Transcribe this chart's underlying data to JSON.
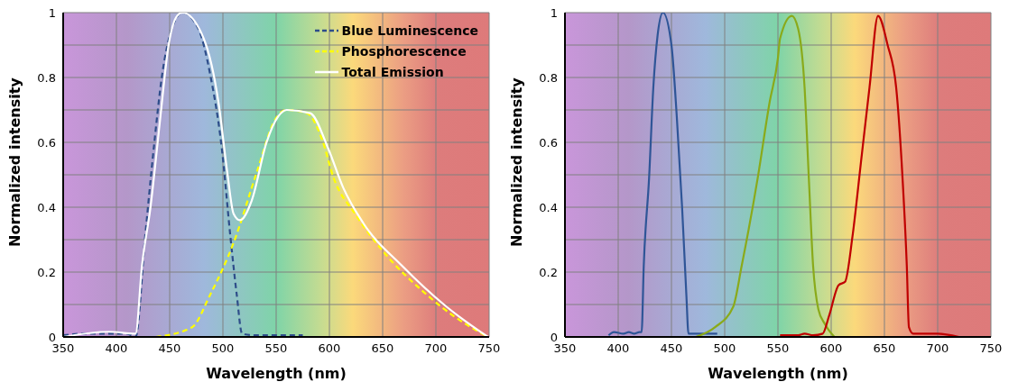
{
  "chart_data": [
    {
      "type": "line",
      "xlabel": "Wavelength (nm)",
      "ylabel": "Normalized intensity",
      "xlim": [
        350,
        750
      ],
      "xticks": [
        350,
        400,
        450,
        500,
        550,
        600,
        650,
        700,
        750
      ],
      "ylim": [
        0,
        1
      ],
      "yticks": [
        0,
        {
          "value": 0.1,
          "label": null
        },
        0.2,
        {
          "value": 0.3,
          "label": null
        },
        0.4,
        {
          "value": 0.5,
          "label": null
        },
        0.6,
        {
          "value": 0.7,
          "label": null
        },
        0.8,
        {
          "value": 0.9,
          "label": null
        },
        1
      ],
      "grid": true,
      "legend": "top right",
      "marker": "none",
      "series": [
        {
          "name": "Blue Luminescence",
          "color": "#2e4d8a",
          "line_style": "dashed",
          "x": [
            350,
            370,
            390,
            410,
            418,
            427,
            435,
            443,
            452,
            462,
            477,
            488,
            499,
            507,
            513,
            518,
            530,
            550,
            575
          ],
          "values": [
            0.005,
            0.01,
            0.01,
            0.01,
            0.0,
            0.31,
            0.58,
            0.81,
            0.95,
            1.0,
            0.95,
            0.81,
            0.58,
            0.31,
            0.13,
            0.01,
            0.005,
            0.005,
            0.005
          ]
        },
        {
          "name": "Phosphorescence",
          "color": "#ffff00",
          "line_style": "dashed",
          "x": [
            437,
            471,
            488,
            510,
            532,
            549,
            560,
            579,
            593,
            604,
            624,
            654,
            688,
            716,
            749
          ],
          "values": [
            0.0,
            0.03,
            0.13,
            0.29,
            0.51,
            0.67,
            0.7,
            0.69,
            0.61,
            0.49,
            0.38,
            0.25,
            0.14,
            0.066,
            0.0
          ]
        },
        {
          "name": "Total Emission",
          "color": "#ffffff",
          "line_style": "solid",
          "x": [
            350,
            393,
            418,
            424,
            432,
            441,
            449,
            457,
            462,
            482,
            496,
            504,
            510,
            516,
            527,
            541,
            552,
            560,
            582,
            599,
            613,
            632,
            668,
            710,
            749
          ],
          "values": [
            0.0,
            0.016,
            0.01,
            0.22,
            0.4,
            0.67,
            0.9,
            0.99,
            1.0,
            0.92,
            0.72,
            0.51,
            0.38,
            0.36,
            0.42,
            0.6,
            0.68,
            0.7,
            0.69,
            0.58,
            0.46,
            0.35,
            0.22,
            0.093,
            0.0
          ]
        }
      ]
    },
    {
      "type": "line",
      "xlabel": "Wavelength (nm)",
      "ylabel": "Normalized intensity",
      "xlim": [
        350,
        750
      ],
      "xticks": [
        350,
        400,
        450,
        500,
        550,
        600,
        650,
        700,
        750
      ],
      "ylim": [
        0,
        1
      ],
      "yticks": [
        0,
        {
          "value": 0.1,
          "label": null
        },
        0.2,
        {
          "value": 0.3,
          "label": null
        },
        0.4,
        {
          "value": 0.5,
          "label": null
        },
        0.6,
        {
          "value": 0.7,
          "label": null
        },
        0.8,
        {
          "value": 0.9,
          "label": null
        },
        1
      ],
      "grid": true,
      "marker": "none",
      "series": [
        {
          "color": "#2f5597",
          "line_style": "solid",
          "x": [
            391,
            396,
            405,
            410,
            415,
            420,
            422,
            424,
            429,
            433,
            437,
            442,
            450,
            455,
            460,
            464,
            466,
            475,
            485,
            493
          ],
          "values": [
            0.005,
            0.015,
            0.01,
            0.015,
            0.01,
            0.015,
            0.015,
            0.22,
            0.49,
            0.77,
            0.93,
            1.0,
            0.9,
            0.68,
            0.4,
            0.13,
            0.01,
            0.01,
            0.01,
            0.01
          ]
        },
        {
          "color": "#8aaa1a",
          "line_style": "solid",
          "x": [
            473,
            491,
            508,
            516,
            531,
            542,
            550,
            552,
            563,
            569,
            575,
            579,
            583,
            588,
            594,
            603
          ],
          "values": [
            0.0,
            0.03,
            0.093,
            0.22,
            0.49,
            0.72,
            0.86,
            0.92,
            0.99,
            0.95,
            0.77,
            0.49,
            0.22,
            0.085,
            0.04,
            0.0
          ]
        },
        {
          "color": "#c00000",
          "line_style": "solid",
          "x": [
            552,
            569,
            575,
            583,
            592,
            598,
            607,
            613,
            620,
            628,
            636,
            644,
            653,
            661,
            667,
            671,
            673,
            677,
            700,
            720
          ],
          "values": [
            0.005,
            0.005,
            0.01,
            0.005,
            0.01,
            0.065,
            0.16,
            0.17,
            0.31,
            0.54,
            0.77,
            0.99,
            0.9,
            0.77,
            0.49,
            0.22,
            0.03,
            0.01,
            0.01,
            0.0
          ]
        }
      ]
    }
  ]
}
